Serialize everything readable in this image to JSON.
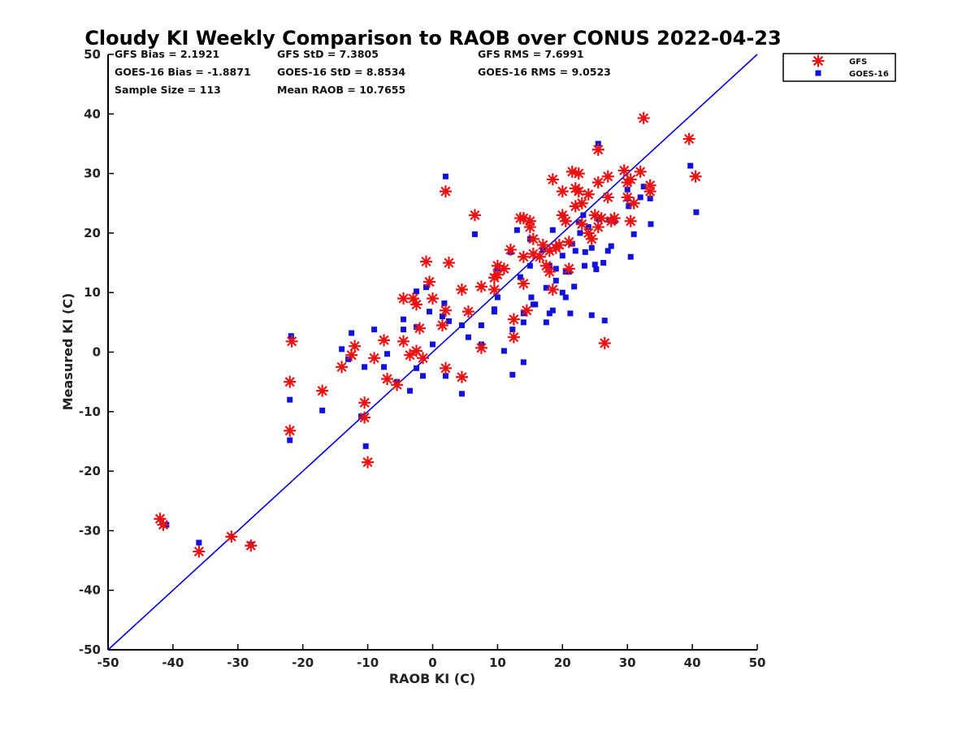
{
  "chart_data": {
    "type": "scatter",
    "title": "Cloudy KI Weekly Comparison to RAOB over CONUS 2022-04-23",
    "xlabel": "RAOB KI (C)",
    "ylabel": "Measured KI (C)",
    "xlim": [
      -50,
      50
    ],
    "ylim": [
      -50,
      50
    ],
    "x_ticks": [
      "-50",
      "-40",
      "-30",
      "-20",
      "-10",
      "0",
      "10",
      "20",
      "30",
      "40",
      "50"
    ],
    "y_ticks": [
      "50",
      "40",
      "30",
      "20",
      "10",
      "0",
      "-10",
      "-20",
      "-30",
      "-40",
      "-50"
    ],
    "legend_position": "top-right",
    "reference_line": {
      "from": [
        -50,
        -50
      ],
      "to": [
        50,
        50
      ],
      "color": "#0000dd"
    },
    "stats": [
      [
        "GFS Bias = 2.1921",
        "GFS StD = 7.3805",
        "GFS RMS = 7.6991"
      ],
      [
        "GOES-16 Bias = -1.8871",
        "GOES-16 StD = 8.8534",
        "GOES-16 RMS = 9.0523"
      ],
      [
        "Sample Size = 113",
        "Mean RAOB = 10.7655",
        ""
      ]
    ],
    "series": [
      {
        "name": "GFS",
        "marker": "asterisk",
        "color": "#ee1111",
        "points": [
          [
            -42,
            -28
          ],
          [
            -41.5,
            -29
          ],
          [
            -36,
            -33.5
          ],
          [
            -31,
            -31
          ],
          [
            -28,
            -32.5
          ],
          [
            -22,
            -5
          ],
          [
            -22,
            -13.2
          ],
          [
            -21.7,
            1.8
          ],
          [
            -17,
            -6.5
          ],
          [
            -14,
            -2.5
          ],
          [
            -12.5,
            -0.5
          ],
          [
            -12,
            1
          ],
          [
            -10.5,
            -8.5
          ],
          [
            -10.5,
            -11
          ],
          [
            -10,
            -18.5
          ],
          [
            -9,
            -1
          ],
          [
            -7.5,
            2
          ],
          [
            -7,
            -4.5
          ],
          [
            -5.5,
            -5.5
          ],
          [
            -4.5,
            9
          ],
          [
            -4.5,
            1.8
          ],
          [
            -3.5,
            -0.5
          ],
          [
            -3,
            9
          ],
          [
            -2.5,
            8
          ],
          [
            -2.5,
            0.2
          ],
          [
            -2,
            4
          ],
          [
            -1.5,
            -1
          ],
          [
            -1,
            15.2
          ],
          [
            -0.5,
            11.8
          ],
          [
            0,
            9
          ],
          [
            1.5,
            4.5
          ],
          [
            2,
            7
          ],
          [
            2,
            -2.7
          ],
          [
            2,
            27
          ],
          [
            2.5,
            15
          ],
          [
            4.5,
            10.5
          ],
          [
            4.5,
            -4.2
          ],
          [
            5.5,
            6.8
          ],
          [
            6.5,
            23
          ],
          [
            7.5,
            11
          ],
          [
            7.5,
            0.7
          ],
          [
            9.5,
            12.5
          ],
          [
            9.5,
            10.5
          ],
          [
            10,
            14.5
          ],
          [
            10,
            13
          ],
          [
            11,
            14
          ],
          [
            12,
            17.2
          ],
          [
            12.5,
            5.5
          ],
          [
            12.5,
            2.5
          ],
          [
            13.5,
            22.5
          ],
          [
            14,
            22.5
          ],
          [
            14,
            16
          ],
          [
            14,
            11.5
          ],
          [
            14.5,
            7
          ],
          [
            15,
            22
          ],
          [
            15,
            21
          ],
          [
            15.5,
            19
          ],
          [
            15.5,
            16.5
          ],
          [
            16.5,
            16
          ],
          [
            17,
            18
          ],
          [
            17.5,
            14.5
          ],
          [
            18,
            17
          ],
          [
            18,
            13.5
          ],
          [
            18.5,
            29
          ],
          [
            18.5,
            10.5
          ],
          [
            19,
            17.5
          ],
          [
            19.5,
            18
          ],
          [
            20,
            23
          ],
          [
            20,
            27
          ],
          [
            20.5,
            22
          ],
          [
            21,
            14
          ],
          [
            21,
            18.5
          ],
          [
            21.5,
            30.3
          ],
          [
            22,
            27.5
          ],
          [
            22,
            24.5
          ],
          [
            22.5,
            30
          ],
          [
            22.5,
            27
          ],
          [
            23,
            25
          ],
          [
            23,
            21.5
          ],
          [
            24,
            26.5
          ],
          [
            24,
            20
          ],
          [
            24.5,
            19
          ],
          [
            25,
            23
          ],
          [
            25.5,
            21
          ],
          [
            25.5,
            28.5
          ],
          [
            25.5,
            34
          ],
          [
            26,
            22.5
          ],
          [
            26.5,
            1.5
          ],
          [
            27,
            29.5
          ],
          [
            27,
            26
          ],
          [
            27.5,
            22
          ],
          [
            28,
            22.5
          ],
          [
            29.5,
            30.5
          ],
          [
            30,
            28.5
          ],
          [
            30,
            26
          ],
          [
            30.5,
            22
          ],
          [
            30.5,
            29
          ],
          [
            31,
            25
          ],
          [
            32,
            30.3
          ],
          [
            32.5,
            39.3
          ],
          [
            33.5,
            28
          ],
          [
            33.5,
            27
          ],
          [
            39.5,
            35.8
          ],
          [
            40.5,
            29.5
          ]
        ]
      },
      {
        "name": "GOES-16",
        "marker": "square",
        "color": "#1111dd",
        "points": [
          [
            -41.5,
            -29
          ],
          [
            -41,
            -29
          ],
          [
            -36,
            -32
          ],
          [
            -31,
            -31
          ],
          [
            -28,
            -32.3
          ],
          [
            -22,
            -8
          ],
          [
            -22,
            -14.8
          ],
          [
            -21.8,
            2.7
          ],
          [
            -17,
            -9.8
          ],
          [
            -14,
            0.5
          ],
          [
            -13,
            -1.2
          ],
          [
            -12.5,
            3.2
          ],
          [
            -11,
            -10.8
          ],
          [
            -10.5,
            -2.5
          ],
          [
            -10.3,
            -15.8
          ],
          [
            -9,
            3.8
          ],
          [
            -7.5,
            -2.5
          ],
          [
            -7,
            -0.3
          ],
          [
            -5.5,
            -5
          ],
          [
            -4.5,
            5.5
          ],
          [
            -4.5,
            3.8
          ],
          [
            -3.5,
            -6.5
          ],
          [
            -2.5,
            4.2
          ],
          [
            -2.5,
            10.2
          ],
          [
            -2.5,
            -2.7
          ],
          [
            -1.5,
            -4
          ],
          [
            -1,
            10.9
          ],
          [
            -0.5,
            6.8
          ],
          [
            0,
            1.3
          ],
          [
            1.5,
            6
          ],
          [
            1.8,
            8.2
          ],
          [
            2,
            29.5
          ],
          [
            2,
            -4
          ],
          [
            2.5,
            5.2
          ],
          [
            4.5,
            4.5
          ],
          [
            4.5,
            -7
          ],
          [
            5.5,
            2.5
          ],
          [
            6.5,
            19.8
          ],
          [
            7.5,
            4.5
          ],
          [
            7.5,
            1.3
          ],
          [
            9.5,
            6.8
          ],
          [
            9.5,
            7.2
          ],
          [
            10,
            14
          ],
          [
            10,
            9.2
          ],
          [
            11,
            0.2
          ],
          [
            12,
            16.8
          ],
          [
            12.3,
            3.8
          ],
          [
            12.3,
            -3.8
          ],
          [
            13,
            20.5
          ],
          [
            13.5,
            12.6
          ],
          [
            14,
            6.5
          ],
          [
            14,
            5
          ],
          [
            14,
            -1.7
          ],
          [
            15,
            19
          ],
          [
            15,
            14.5
          ],
          [
            15.2,
            9.2
          ],
          [
            15.5,
            8
          ],
          [
            15.8,
            8
          ],
          [
            17,
            17.2
          ],
          [
            17.5,
            10.8
          ],
          [
            17.5,
            5
          ],
          [
            18,
            14.5
          ],
          [
            18,
            6.5
          ],
          [
            18.5,
            20.5
          ],
          [
            18.5,
            7
          ],
          [
            19,
            12
          ],
          [
            19,
            14
          ],
          [
            20,
            23
          ],
          [
            20,
            16.2
          ],
          [
            20,
            10
          ],
          [
            20.5,
            13.5
          ],
          [
            20.5,
            9.2
          ],
          [
            21,
            13.5
          ],
          [
            21.2,
            6.5
          ],
          [
            21.5,
            18.2
          ],
          [
            21.8,
            11
          ],
          [
            22,
            17
          ],
          [
            22.5,
            21.8
          ],
          [
            22.7,
            20
          ],
          [
            23.2,
            23
          ],
          [
            23.4,
            14.5
          ],
          [
            23.5,
            16.8
          ],
          [
            24,
            21
          ],
          [
            24.5,
            6.2
          ],
          [
            24.5,
            17.5
          ],
          [
            25,
            14.7
          ],
          [
            25.2,
            13.9
          ],
          [
            25.5,
            35
          ],
          [
            25.6,
            22.3
          ],
          [
            26.3,
            15
          ],
          [
            26.5,
            5.3
          ],
          [
            27,
            17
          ],
          [
            27.2,
            22.2
          ],
          [
            27.5,
            17.8
          ],
          [
            28,
            22
          ],
          [
            30,
            27.3
          ],
          [
            30,
            25.8
          ],
          [
            30.2,
            24.5
          ],
          [
            30.5,
            16
          ],
          [
            31,
            19.8
          ],
          [
            32,
            26
          ],
          [
            32.5,
            27.8
          ],
          [
            33.5,
            25.8
          ],
          [
            33.6,
            21.5
          ],
          [
            39.7,
            31.3
          ],
          [
            40.6,
            23.5
          ]
        ]
      }
    ]
  }
}
